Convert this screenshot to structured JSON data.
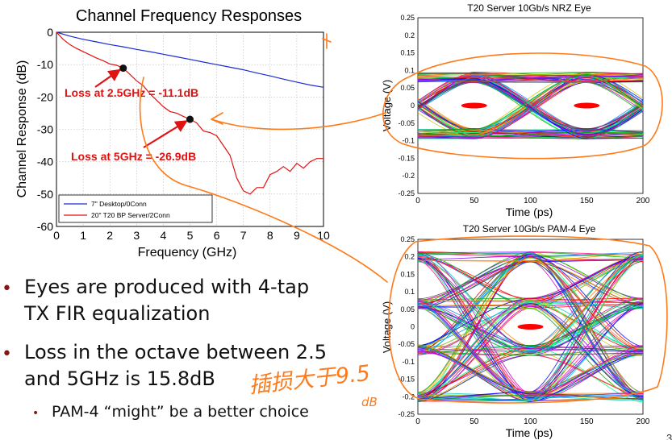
{
  "colors": {
    "red": "#e01212",
    "blue": "#1b2ad6",
    "orange": "#ff7a1a",
    "dark_red": "#8a1414"
  },
  "bullets": [
    {
      "lines": [
        "Eyes are produced with 4-tap",
        "TX FIR equalization"
      ]
    },
    {
      "lines": [
        "Loss in the octave between 2.5",
        "and 5GHz is 15.8dB"
      ]
    },
    {
      "lines": [
        "PAM-4 “might” be a better choice"
      ]
    }
  ],
  "handwriting": {
    "note": "插损大于9.5",
    "unit": "dB"
  },
  "page_number": "3",
  "chart_data": [
    {
      "type": "line",
      "title": "Channel Frequency Responses",
      "xlabel": "Frequency (GHz)",
      "ylabel": "Channel Response (dB)",
      "xlim": [
        0,
        10
      ],
      "ylim": [
        -60,
        0
      ],
      "xticks": [
        0,
        1,
        2,
        3,
        4,
        5,
        6,
        7,
        8,
        9,
        10
      ],
      "yticks": [
        0,
        -10,
        -20,
        -30,
        -40,
        -50,
        -60
      ],
      "legend_position": "bottom-left",
      "series": [
        {
          "name": "7\" Desktop/0Conn",
          "color": "#1b2ad6",
          "x": [
            0,
            0.5,
            1,
            1.5,
            2,
            2.5,
            3,
            3.5,
            4,
            4.5,
            5,
            5.5,
            6,
            6.5,
            7,
            7.5,
            8,
            8.5,
            9,
            9.5,
            10
          ],
          "y": [
            0,
            -1.2,
            -2.2,
            -3,
            -3.8,
            -4.5,
            -5.3,
            -6,
            -6.8,
            -7.6,
            -8.4,
            -9.2,
            -10,
            -10.8,
            -11.6,
            -12.6,
            -13.5,
            -14.5,
            -15.4,
            -16.3,
            -17
          ]
        },
        {
          "name": "20\" T20 BP Server/2Conn",
          "color": "#e01212",
          "x": [
            0,
            0.25,
            0.5,
            0.75,
            1,
            1.25,
            1.5,
            1.75,
            2,
            2.25,
            2.5,
            2.75,
            3,
            3.25,
            3.5,
            3.75,
            4,
            4.25,
            4.5,
            4.75,
            5,
            5.25,
            5.5,
            5.75,
            6,
            6.25,
            6.5,
            6.75,
            7,
            7.25,
            7.5,
            7.75,
            8,
            8.25,
            8.5,
            8.75,
            9,
            9.25,
            9.5,
            9.75,
            10
          ],
          "y": [
            0,
            -2.2,
            -3.8,
            -5,
            -6,
            -7,
            -8,
            -8.8,
            -9.8,
            -10.2,
            -11.1,
            -13,
            -15,
            -16.5,
            -19,
            -21,
            -23,
            -24.5,
            -25,
            -26,
            -26.9,
            -28,
            -30.5,
            -31,
            -32,
            -35,
            -38,
            -45,
            -49,
            -50,
            -48,
            -48,
            -44,
            -43,
            -41.5,
            -43,
            -40.5,
            -42,
            -40,
            -39,
            -39
          ]
        }
      ],
      "annotations": [
        {
          "text": "Loss at 2.5GHz = -11.1dB",
          "x": 2.5,
          "y": -11.1
        },
        {
          "text": "Loss at 5GHz = -26.9dB",
          "x": 5,
          "y": -26.9
        }
      ]
    },
    {
      "type": "eye",
      "title": "T20 Server 10Gb/s NRZ Eye",
      "xlabel": "Time (ps)",
      "ylabel": "Voltage (V)",
      "xlim": [
        0,
        200
      ],
      "ylim": [
        -0.25,
        0.25
      ],
      "xticks": [
        0,
        50,
        100,
        150,
        200
      ],
      "yticks": [
        0.25,
        0.2,
        0.15,
        0.1,
        0.05,
        0,
        -0.05,
        -0.1,
        -0.15,
        -0.2,
        -0.25
      ],
      "signal_levels": [
        -0.08,
        0.08
      ],
      "eye_centers": [
        50,
        150
      ]
    },
    {
      "type": "eye",
      "title": "T20 Server 10Gb/s PAM-4 Eye",
      "xlabel": "Time (ps)",
      "ylabel": "Voltage (V)",
      "xlim": [
        0,
        200
      ],
      "ylim": [
        -0.25,
        0.25
      ],
      "xticks": [
        0,
        50,
        100,
        150,
        200
      ],
      "yticks": [
        0.25,
        0.2,
        0.15,
        0.1,
        0.05,
        0,
        -0.05,
        -0.1,
        -0.15,
        -0.2,
        -0.25
      ],
      "signal_levels": [
        -0.2,
        -0.067,
        0.067,
        0.2
      ],
      "eye_centers": [
        100
      ]
    }
  ]
}
